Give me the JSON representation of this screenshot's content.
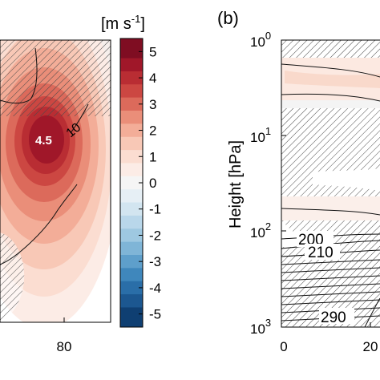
{
  "chart_data": [
    {
      "type": "heatmap",
      "panel_label": "",
      "xlabel": "",
      "ylabel": "",
      "x_ticks": [
        80
      ],
      "colorbar": {
        "unit_base": "[m s",
        "unit_exp": "-1",
        "unit_close": "]",
        "ticks": [
          5,
          4,
          3,
          2,
          1,
          0,
          -1,
          -2,
          -3,
          -4,
          -5
        ],
        "range": [
          -5.5,
          5.5
        ],
        "levels": [
          {
            "value": 5,
            "color": "#7f0d22"
          },
          {
            "value": 4.5,
            "color": "#a01729"
          },
          {
            "value": 4,
            "color": "#b92d33"
          },
          {
            "value": 3.5,
            "color": "#cc4742"
          },
          {
            "value": 3,
            "color": "#dc6a5b"
          },
          {
            "value": 2.5,
            "color": "#ea8e79"
          },
          {
            "value": 2,
            "color": "#f3ad98"
          },
          {
            "value": 1.5,
            "color": "#f8c8b6"
          },
          {
            "value": 1,
            "color": "#fbddd1"
          },
          {
            "value": 0.5,
            "color": "#fcece6"
          },
          {
            "value": 0,
            "color": "#f5f5f5"
          },
          {
            "value": -0.5,
            "color": "#e6eff5"
          },
          {
            "value": -1,
            "color": "#d2e5f0"
          },
          {
            "value": -1.5,
            "color": "#b9d7ea"
          },
          {
            "value": -2,
            "color": "#9ec8e1"
          },
          {
            "value": -2.5,
            "color": "#7fb5d7"
          },
          {
            "value": -3,
            "color": "#5e9fcb"
          },
          {
            "value": -3.5,
            "color": "#3f87bc"
          },
          {
            "value": -4,
            "color": "#2a6ea8"
          },
          {
            "value": -4.5,
            "color": "#1c5790"
          },
          {
            "value": -5,
            "color": "#0f3f72"
          }
        ]
      },
      "contour_labels": [
        "10"
      ],
      "max_label": "4.5"
    },
    {
      "type": "heatmap",
      "panel_label": "(b)",
      "xlabel": "",
      "ylabel": "Height [hPa]",
      "y_scale": "log",
      "y_ticks": [
        {
          "base": "10",
          "exp": "0"
        },
        {
          "base": "10",
          "exp": "1"
        },
        {
          "base": "10",
          "exp": "2"
        },
        {
          "base": "10",
          "exp": "3"
        }
      ],
      "x_ticks": [
        "0",
        "20"
      ],
      "contour_labels": [
        "200",
        "210",
        "290"
      ]
    }
  ]
}
